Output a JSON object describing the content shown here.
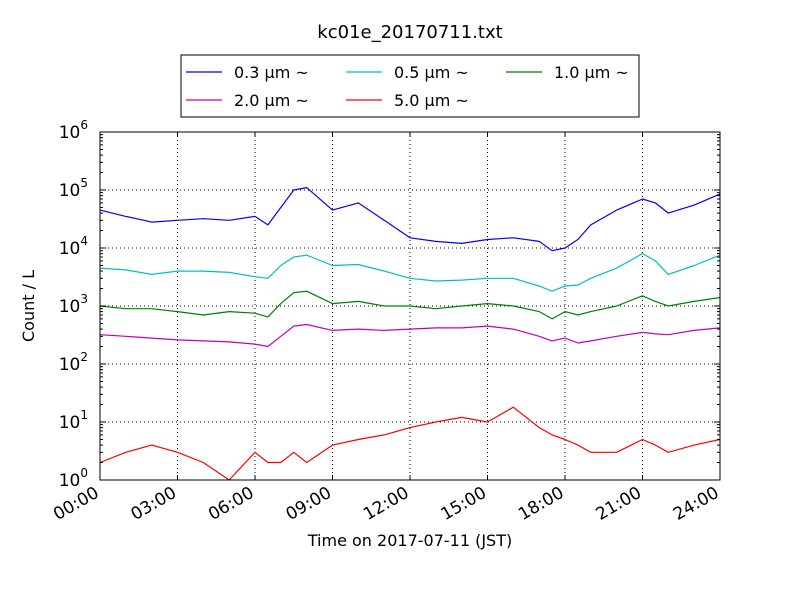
{
  "chart_data": {
    "type": "line",
    "title": "kc01e_20170711.txt",
    "xlabel": "Time on 2017-07-11 (JST)",
    "ylabel": "Count / L",
    "yscale": "log",
    "xlim_hours": [
      0,
      24
    ],
    "ylim": [
      1,
      1000000
    ],
    "grid": true,
    "legend": "top-center",
    "x_ticks": [
      "00:00",
      "03:00",
      "06:00",
      "09:00",
      "12:00",
      "15:00",
      "18:00",
      "21:00",
      "24:00"
    ],
    "y_ticks": [
      {
        "base": "10",
        "exp": "0"
      },
      {
        "base": "10",
        "exp": "1"
      },
      {
        "base": "10",
        "exp": "2"
      },
      {
        "base": "10",
        "exp": "3"
      },
      {
        "base": "10",
        "exp": "4"
      },
      {
        "base": "10",
        "exp": "5"
      },
      {
        "base": "10",
        "exp": "6"
      }
    ],
    "x_hours": [
      0,
      1,
      2,
      3,
      4,
      5,
      6,
      6.5,
      7,
      7.5,
      8,
      9,
      10,
      11,
      12,
      13,
      14,
      15,
      16,
      17,
      17.5,
      18,
      18.5,
      19,
      20,
      21,
      21.5,
      22,
      23,
      24
    ],
    "series": [
      {
        "name": "0.3 μm ~",
        "color": "#0000ff",
        "values": [
          45000,
          35000,
          28000,
          30000,
          32000,
          30000,
          35000,
          25000,
          50000,
          100000,
          110000,
          45000,
          60000,
          30000,
          15000,
          13000,
          12000,
          14000,
          15000,
          13000,
          9000,
          10000,
          14000,
          25000,
          45000,
          70000,
          60000,
          40000,
          55000,
          85000
        ]
      },
      {
        "name": "0.5 μm ~",
        "color": "#00bfbf",
        "values": [
          4500,
          4200,
          3500,
          4000,
          4000,
          3800,
          3200,
          3000,
          5000,
          7000,
          7500,
          5000,
          5200,
          4000,
          3000,
          2700,
          2800,
          3000,
          3000,
          2200,
          1800,
          2200,
          2300,
          3000,
          4500,
          8000,
          6000,
          3500,
          5000,
          7500
        ]
      },
      {
        "name": "1.0 μm ~",
        "color": "#008000",
        "values": [
          1000,
          900,
          900,
          800,
          700,
          800,
          750,
          650,
          1100,
          1700,
          1800,
          1100,
          1200,
          1000,
          1000,
          900,
          1000,
          1100,
          1000,
          800,
          600,
          800,
          700,
          800,
          1000,
          1500,
          1200,
          1000,
          1200,
          1400
        ]
      },
      {
        "name": "2.0 μm ~",
        "color": "#bf00bf",
        "values": [
          320,
          300,
          280,
          260,
          250,
          240,
          220,
          200,
          300,
          450,
          480,
          380,
          400,
          380,
          400,
          420,
          420,
          450,
          400,
          300,
          250,
          280,
          230,
          250,
          300,
          350,
          330,
          320,
          380,
          420
        ]
      },
      {
        "name": "5.0 μm ~",
        "color": "#ff0000",
        "values": [
          2,
          3,
          4,
          3,
          2,
          1,
          3,
          2,
          2,
          3,
          2,
          4,
          5,
          6,
          8,
          10,
          12,
          10,
          18,
          8,
          6,
          5,
          4,
          3,
          3,
          5,
          4,
          3,
          4,
          5
        ]
      }
    ]
  }
}
